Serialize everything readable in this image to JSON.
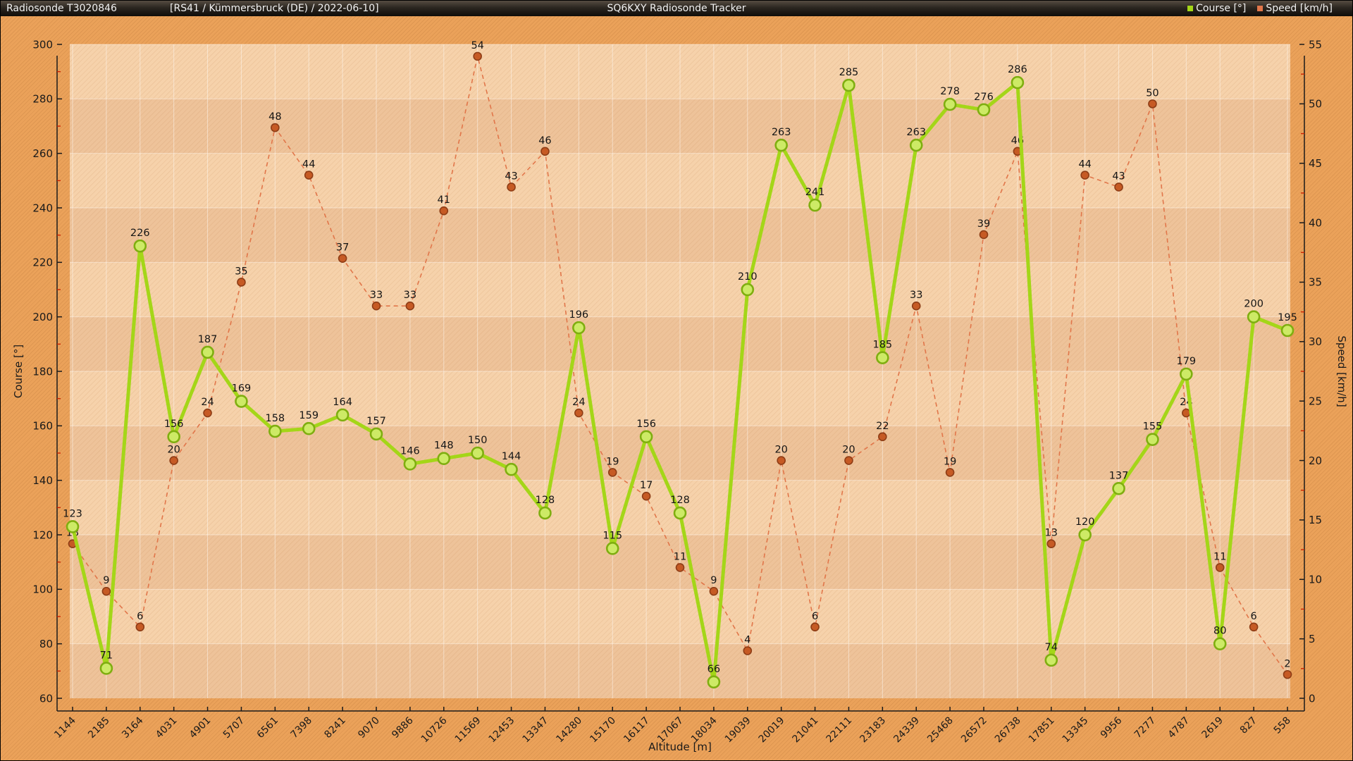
{
  "header": {
    "app_title": "Radiosonde T3020846",
    "flight_info": "[RS41 / Kümmersbruck (DE) / 2022-06-10]",
    "tracker_title": "SQ6KXY Radiosonde Tracker",
    "legend": [
      {
        "label": "Course [°]",
        "color": "#a4d618"
      },
      {
        "label": "Speed [km/h]",
        "color": "#e1764a"
      }
    ]
  },
  "chart_data": {
    "type": "line",
    "title": "SQ6KXY Radiosonde Tracker",
    "xlabel": "Altitude [m]",
    "ylabel_left": "Course [°]",
    "ylabel_right": "Speed [km/h]",
    "ylim_left": [
      60,
      300
    ],
    "ytick_step_left": 20,
    "yminor_step_left": 10,
    "ylim_right": [
      0,
      55
    ],
    "ytick_step_right": 5,
    "yminor_step_right": 2.5,
    "grid": true,
    "legend_position": "title-bar-right",
    "categories": [
      1144,
      2185,
      3164,
      4031,
      4901,
      5707,
      6561,
      7398,
      8241,
      9070,
      9886,
      10726,
      11569,
      12453,
      13347,
      14280,
      15170,
      16117,
      17067,
      18034,
      19039,
      20019,
      21041,
      22111,
      23183,
      24339,
      25468,
      26572,
      26738,
      17851,
      13345,
      9956,
      7277,
      4787,
      2619,
      827,
      558
    ],
    "series": [
      {
        "name": "Course [°]",
        "axis": "left",
        "style": "solid",
        "color": "#a4d618",
        "marker_fill": "#cdea66",
        "marker_stroke": "#7fae10",
        "values": [
          123,
          71,
          226,
          156,
          187,
          169,
          158,
          159,
          164,
          157,
          146,
          148,
          150,
          144,
          128,
          196,
          115,
          156,
          128,
          66,
          210,
          263,
          241,
          285,
          185,
          263,
          278,
          276,
          286,
          74,
          120,
          137,
          155,
          179,
          80,
          200,
          195
        ]
      },
      {
        "name": "Speed [km/h]",
        "axis": "right",
        "style": "dashed",
        "color": "#e1764a",
        "marker_fill": "#c65a24",
        "marker_stroke": "#8e3d16",
        "values": [
          13,
          9,
          6,
          20,
          24,
          35,
          48,
          44,
          37,
          33,
          33,
          41,
          54,
          43,
          46,
          24,
          19,
          17,
          11,
          9,
          4,
          20,
          6,
          20,
          22,
          33,
          19,
          39,
          46,
          13,
          44,
          43,
          50,
          24,
          11,
          6,
          2
        ]
      }
    ],
    "colors": {
      "band_light": "#f6d2ab",
      "band_dark": "#eec39a",
      "margin_bg": "#eba25a",
      "gridline": "rgba(255,255,255,0.45)",
      "axis": "#1a1a1a",
      "minor_tick": "#cc2200",
      "value_label": "#151515"
    }
  }
}
